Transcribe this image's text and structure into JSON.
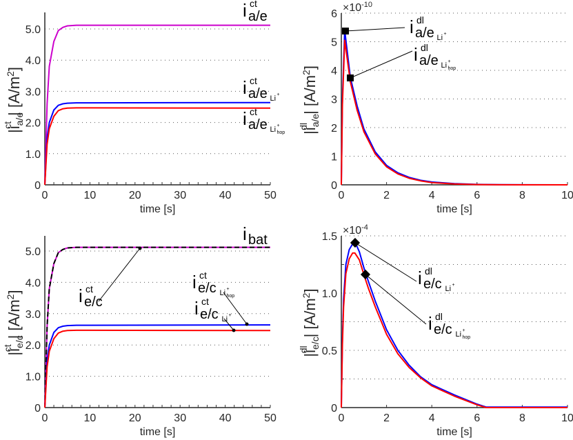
{
  "chart_data": [
    {
      "id": "top-left",
      "type": "line",
      "title": "",
      "xlabel": "time [s]",
      "ylabel": "|i_ct_a/e| [A/m^2]",
      "xlim": [
        0,
        50
      ],
      "ylim": [
        0,
        5.5
      ],
      "xticks": [
        "0",
        "10",
        "20",
        "30",
        "40",
        "50"
      ],
      "yticks": [
        "0",
        "1.0",
        "2.0",
        "3.0",
        "4.0",
        "5.0"
      ],
      "grid": "horizontal dotted",
      "series": [
        {
          "name": "i_ct_a/e",
          "color": "#cc00cc",
          "x": [
            0,
            0.5,
            1,
            2,
            3,
            4,
            5,
            7,
            10,
            50
          ],
          "y": [
            0,
            2.6,
            3.8,
            4.6,
            4.95,
            5.05,
            5.1,
            5.12,
            5.12,
            5.12
          ]
        },
        {
          "name": "i_ct_a/e_Li+",
          "color": "#0000ff",
          "x": [
            0,
            0.5,
            1,
            2,
            3,
            4,
            5,
            7,
            10,
            50
          ],
          "y": [
            0,
            1.5,
            2.0,
            2.4,
            2.55,
            2.6,
            2.62,
            2.63,
            2.63,
            2.64
          ]
        },
        {
          "name": "i_ct_a/e_Li+hop",
          "color": "#ff0000",
          "x": [
            0,
            0.5,
            1,
            2,
            3,
            4,
            5,
            7,
            10,
            50
          ],
          "y": [
            0,
            1.3,
            1.8,
            2.2,
            2.38,
            2.44,
            2.46,
            2.47,
            2.47,
            2.46
          ]
        }
      ],
      "annotations": [
        {
          "main": "i",
          "sup": "ct",
          "sub": "a/e",
          "subsub": ""
        },
        {
          "main": "i",
          "sup": "ct",
          "sub": "a/e",
          "subsub": "Li+"
        },
        {
          "main": "i",
          "sup": "ct",
          "sub": "a/e",
          "subsub": "Li+hop"
        }
      ]
    },
    {
      "id": "top-right",
      "type": "line",
      "title": "",
      "xlabel": "time [s]",
      "ylabel": "|i_dl_a/e| [A/m^2]",
      "exponent": "×10⁻¹⁰",
      "xlim": [
        0,
        10
      ],
      "ylim": [
        0,
        6
      ],
      "xticks": [
        "0",
        "2",
        "4",
        "6",
        "8",
        "10"
      ],
      "yticks": [
        "0",
        "1",
        "2",
        "3",
        "4",
        "5",
        "6"
      ],
      "grid": "horizontal dotted",
      "series": [
        {
          "name": "i_dl_a/e_Li+",
          "color": "#0000ff",
          "x": [
            0,
            0.05,
            0.15,
            0.4,
            0.7,
            1,
            1.5,
            2,
            2.5,
            3,
            3.5,
            4,
            5,
            6,
            7,
            10
          ],
          "y": [
            0,
            3,
            5.4,
            3.75,
            2.75,
            1.95,
            1.15,
            0.68,
            0.42,
            0.26,
            0.16,
            0.1,
            0.04,
            0.015,
            0.005,
            0
          ]
        },
        {
          "name": "i_dl_a/e_Li+hop",
          "color": "#ff0000",
          "x": [
            0,
            0.05,
            0.15,
            0.4,
            0.7,
            1,
            1.5,
            2,
            2.5,
            3,
            3.5,
            4,
            5,
            6,
            7,
            10
          ],
          "y": [
            0,
            2.8,
            5.05,
            3.6,
            2.6,
            1.85,
            1.08,
            0.63,
            0.38,
            0.23,
            0.14,
            0.08,
            0.03,
            0.01,
            0.003,
            0
          ]
        }
      ],
      "markers": [
        {
          "x": 0.15,
          "y": 5.38
        },
        {
          "x": 0.38,
          "y": 3.72
        }
      ],
      "annotations": [
        {
          "main": "i",
          "sup": "dl",
          "sub": "a/e",
          "subsub": "Li+"
        },
        {
          "main": "i",
          "sup": "dl",
          "sub": "a/e",
          "subsub": "Li+hop"
        }
      ]
    },
    {
      "id": "bottom-left",
      "type": "line",
      "title": "",
      "xlabel": "time [s]",
      "ylabel": "|i_ct_e/c| [A/m^2]",
      "xlim": [
        0,
        50
      ],
      "ylim": [
        0,
        5.5
      ],
      "xticks": [
        "0",
        "10",
        "20",
        "30",
        "40",
        "50"
      ],
      "yticks": [
        "0",
        "1.0",
        "2.0",
        "3.0",
        "4.0",
        "5.0"
      ],
      "grid": "horizontal dotted",
      "series": [
        {
          "name": "i_ct_e/c",
          "color": "#cc00cc",
          "x": [
            0,
            0.5,
            1,
            2,
            3,
            4,
            5,
            7,
            10,
            50
          ],
          "y": [
            0,
            2.6,
            3.8,
            4.6,
            4.95,
            5.05,
            5.1,
            5.12,
            5.12,
            5.12
          ]
        },
        {
          "name": "i_bat",
          "color": "#000000",
          "dashed": true,
          "x": [
            0,
            0.5,
            1,
            2,
            3,
            4,
            5,
            7,
            10,
            50
          ],
          "y": [
            0,
            2.6,
            3.8,
            4.6,
            4.95,
            5.05,
            5.1,
            5.12,
            5.12,
            5.12
          ]
        },
        {
          "name": "i_ct_e/c_Li+hop",
          "color": "#0000ff",
          "x": [
            0,
            0.5,
            1,
            2,
            3,
            4,
            5,
            7,
            10,
            50
          ],
          "y": [
            0,
            1.5,
            2.0,
            2.4,
            2.55,
            2.6,
            2.62,
            2.63,
            2.63,
            2.64
          ]
        },
        {
          "name": "i_ct_e/c_Li+",
          "color": "#ff0000",
          "x": [
            0,
            0.5,
            1,
            2,
            3,
            4,
            5,
            7,
            10,
            50
          ],
          "y": [
            0,
            1.3,
            1.8,
            2.2,
            2.38,
            2.44,
            2.46,
            2.47,
            2.47,
            2.46
          ]
        }
      ],
      "markers": [
        {
          "x": 21.5,
          "y": 5.12
        },
        {
          "x": 45,
          "y": 2.64
        },
        {
          "x": 42,
          "y": 2.46
        }
      ],
      "annotations": [
        {
          "main": "i",
          "sup": "",
          "sub": "bat",
          "subsub": ""
        },
        {
          "main": "i",
          "sup": "ct",
          "sub": "e/c",
          "subsub": ""
        },
        {
          "main": "i",
          "sup": "ct",
          "sub": "e/c",
          "subsub": "Li+hop"
        },
        {
          "main": "i",
          "sup": "ct",
          "sub": "e/c",
          "subsub": "Li+"
        }
      ]
    },
    {
      "id": "bottom-right",
      "type": "line",
      "title": "",
      "xlabel": "time [s]",
      "ylabel": "|i_dl_e/c| [A/m^2]",
      "exponent": "×10⁻⁴",
      "xlim": [
        0,
        10
      ],
      "ylim": [
        0,
        1.5
      ],
      "xticks": [
        "0",
        "2",
        "4",
        "6",
        "8",
        "10"
      ],
      "yticks": [
        "0",
        "0.5",
        "1.0",
        "1.5"
      ],
      "grid": "horizontal dotted",
      "series": [
        {
          "name": "i_dl_e/c_Li+",
          "color": "#0000ff",
          "x": [
            0,
            0.05,
            0.1,
            0.2,
            0.35,
            0.5,
            0.62,
            0.8,
            1.0,
            1.2,
            1.5,
            2,
            2.5,
            3,
            3.5,
            4,
            5,
            6,
            6.4,
            10
          ],
          "y": [
            0,
            0.6,
            0.95,
            1.25,
            1.38,
            1.43,
            1.44,
            1.36,
            1.22,
            1.1,
            0.93,
            0.68,
            0.5,
            0.37,
            0.27,
            0.2,
            0.11,
            0.03,
            0.005,
            0.005
          ]
        },
        {
          "name": "i_dl_e/c_Li+hop",
          "color": "#ff0000",
          "x": [
            0,
            0.05,
            0.1,
            0.2,
            0.35,
            0.5,
            0.6,
            0.8,
            1.0,
            1.2,
            1.5,
            2,
            2.5,
            3,
            3.5,
            4,
            5,
            6,
            6.4,
            10
          ],
          "y": [
            0,
            0.55,
            0.88,
            1.17,
            1.3,
            1.35,
            1.35,
            1.29,
            1.16,
            1.04,
            0.88,
            0.64,
            0.47,
            0.35,
            0.26,
            0.19,
            0.1,
            0.025,
            0,
            0
          ]
        }
      ],
      "markers": [
        {
          "x": 0.62,
          "y": 1.44
        },
        {
          "x": 1.08,
          "y": 1.16
        }
      ],
      "annotations": [
        {
          "main": "i",
          "sup": "dl",
          "sub": "e/c",
          "subsub": "Li+"
        },
        {
          "main": "i",
          "sup": "dl",
          "sub": "e/c",
          "subsub": "Li+hop"
        }
      ]
    }
  ],
  "labels": {
    "time": "time [s]",
    "exp_top": "×10",
    "exp_top_power": "-10",
    "exp_bot": "×10",
    "exp_bot_power": "-4",
    "unit": "[A/m",
    "unit_sq": "2",
    "unit_close": "]",
    "ct": "ct",
    "dl": "dl",
    "ae": "a/e",
    "ec": "e/c",
    "bat": "bat",
    "li": "Li",
    "hop": "hop",
    "i": "i"
  }
}
